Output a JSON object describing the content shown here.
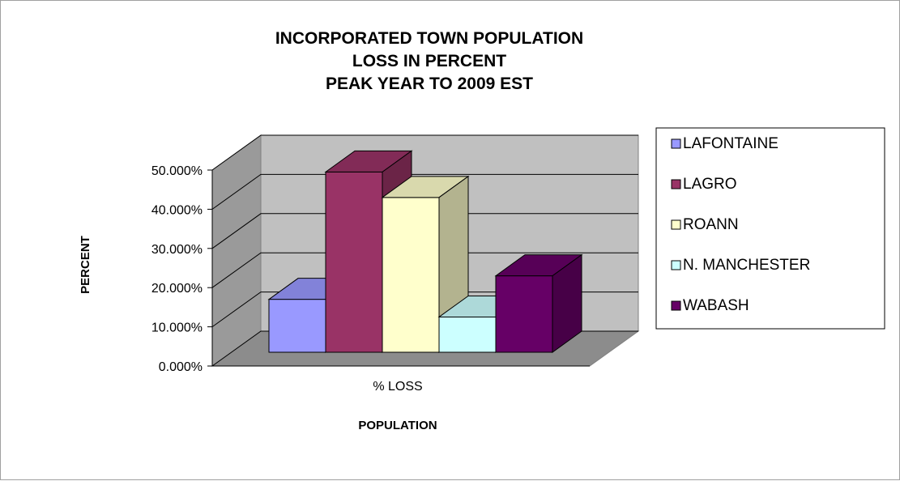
{
  "chart_data": {
    "type": "bar",
    "title_lines": [
      "INCORPORATED TOWN POPULATION",
      "LOSS IN PERCENT",
      "PEAK YEAR TO 2009 EST"
    ],
    "xlabel": "POPULATION",
    "ylabel": "PERCENT",
    "categories": [
      "% LOSS"
    ],
    "series": [
      {
        "name": "LAFONTAINE",
        "values": [
          13.5
        ],
        "color": "#9999ff"
      },
      {
        "name": "LAGRO",
        "values": [
          46.0
        ],
        "color": "#993366"
      },
      {
        "name": "ROANN",
        "values": [
          39.5
        ],
        "color": "#ffffcc"
      },
      {
        "name": "N. MANCHESTER",
        "values": [
          9.0
        ],
        "color": "#ccffff"
      },
      {
        "name": "WABASH",
        "values": [
          19.5
        ],
        "color": "#660066"
      }
    ],
    "ylim": [
      0,
      50
    ],
    "yticks": [
      "0.000%",
      "10.000%",
      "20.000%",
      "30.000%",
      "40.000%",
      "50.000%"
    ],
    "grid": true,
    "legend_position": "right",
    "three_d": true,
    "wall_color": "#c0c0c0"
  }
}
